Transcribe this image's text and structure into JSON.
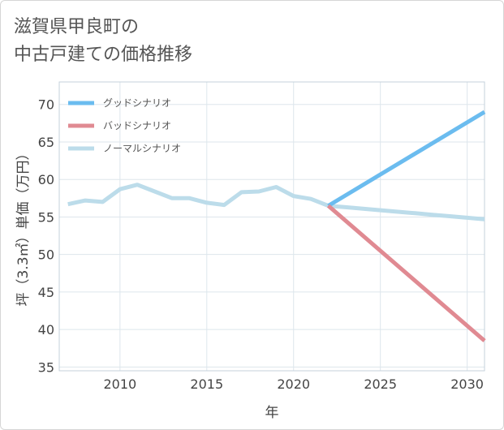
{
  "title": {
    "line1": "滋賀県甲良町の",
    "line2": "中古戸建ての価格推移"
  },
  "chart_data": {
    "type": "line",
    "xlabel": "年",
    "ylabel": "坪（3.3㎡）単価（万円）",
    "xlim": [
      2006.5,
      2031
    ],
    "ylim": [
      34.5,
      73
    ],
    "x_ticks": [
      2010,
      2015,
      2020,
      2025,
      2030
    ],
    "y_ticks": [
      35,
      40,
      45,
      50,
      55,
      60,
      65,
      70
    ],
    "grid": true,
    "legend_position": "top-left",
    "series": [
      {
        "name": "グッドシナリオ",
        "color": "#6bbcef",
        "points": [
          [
            2022,
            56.5
          ],
          [
            2031,
            69.0
          ]
        ]
      },
      {
        "name": "バッドシナリオ",
        "color": "#e08a92",
        "points": [
          [
            2022,
            56.5
          ],
          [
            2031,
            38.5
          ]
        ]
      },
      {
        "name": "ノーマルシナリオ",
        "color": "#bcdcea",
        "points": [
          [
            2007,
            56.7
          ],
          [
            2008,
            57.2
          ],
          [
            2009,
            57.0
          ],
          [
            2010,
            58.7
          ],
          [
            2011,
            59.3
          ],
          [
            2012,
            58.4
          ],
          [
            2013,
            57.5
          ],
          [
            2014,
            57.5
          ],
          [
            2015,
            56.9
          ],
          [
            2016,
            56.6
          ],
          [
            2017,
            58.3
          ],
          [
            2018,
            58.4
          ],
          [
            2019,
            59.0
          ],
          [
            2020,
            57.8
          ],
          [
            2021,
            57.4
          ],
          [
            2022,
            56.5
          ],
          [
            2023,
            56.3
          ],
          [
            2024,
            56.1
          ],
          [
            2025,
            55.9
          ],
          [
            2026,
            55.7
          ],
          [
            2027,
            55.5
          ],
          [
            2028,
            55.3
          ],
          [
            2029,
            55.1
          ],
          [
            2030,
            54.9
          ],
          [
            2031,
            54.7
          ]
        ]
      }
    ]
  }
}
